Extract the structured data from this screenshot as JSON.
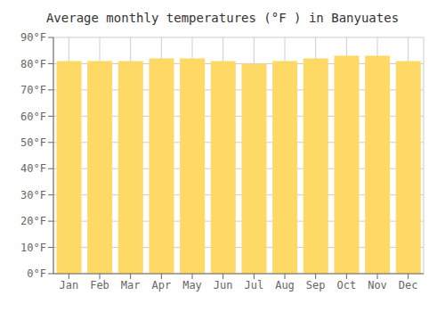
{
  "chart_data": {
    "type": "bar",
    "title": "Average monthly temperatures (°F ) in Banyuates",
    "categories": [
      "Jan",
      "Feb",
      "Mar",
      "Apr",
      "May",
      "Jun",
      "Jul",
      "Aug",
      "Sep",
      "Oct",
      "Nov",
      "Dec"
    ],
    "values": [
      81,
      81,
      81,
      82,
      82,
      81,
      80,
      81,
      82,
      83,
      83,
      81
    ],
    "color": "#FFD966",
    "ylim": [
      0,
      90
    ],
    "yticks": [
      {
        "value": 0,
        "label": "0°F"
      },
      {
        "value": 10,
        "label": "10°F"
      },
      {
        "value": 20,
        "label": "20°F"
      },
      {
        "value": 30,
        "label": "30°F"
      },
      {
        "value": 40,
        "label": "40°F"
      },
      {
        "value": 50,
        "label": "50°F"
      },
      {
        "value": 60,
        "label": "60°F"
      },
      {
        "value": 70,
        "label": "70°F"
      },
      {
        "value": 80,
        "label": "80°F"
      },
      {
        "value": 90,
        "label": "90°F"
      }
    ],
    "grid": true
  }
}
